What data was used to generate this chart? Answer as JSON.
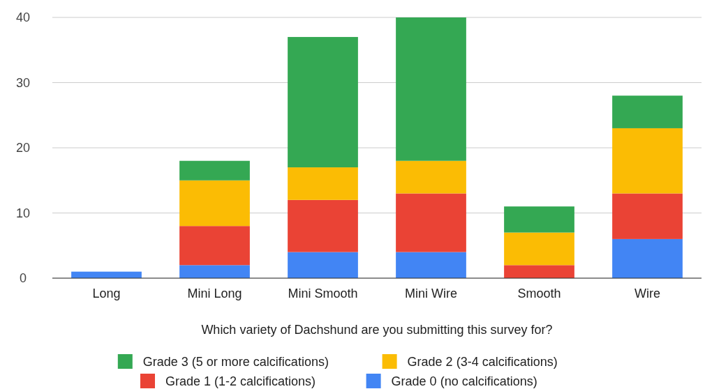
{
  "chart_data": {
    "type": "bar",
    "stacked": true,
    "xlabel": "Which variety of Dachshund are you submitting this survey for?",
    "categories": [
      "Long",
      "Mini Long",
      "Mini Smooth",
      "Mini Wire",
      "Smooth",
      "Wire"
    ],
    "series": [
      {
        "name": "Grade 0 (no calcifications)",
        "color": "#4285f4",
        "values": [
          1,
          2,
          4,
          4,
          0,
          6
        ]
      },
      {
        "name": "Grade 1 (1-2 calcifications)",
        "color": "#ea4335",
        "values": [
          0,
          6,
          8,
          9,
          2,
          7
        ]
      },
      {
        "name": "Grade 2 (3-4 calcifications)",
        "color": "#fbbc04",
        "values": [
          0,
          7,
          5,
          5,
          5,
          10
        ]
      },
      {
        "name": "Grade 3 (5 or more calcifications)",
        "color": "#34a853",
        "values": [
          0,
          3,
          20,
          22,
          4,
          5
        ]
      }
    ],
    "ylim": [
      0,
      40
    ],
    "yticks": [
      0,
      10,
      20,
      30,
      40
    ],
    "grid": "y",
    "legend": "bottom"
  }
}
